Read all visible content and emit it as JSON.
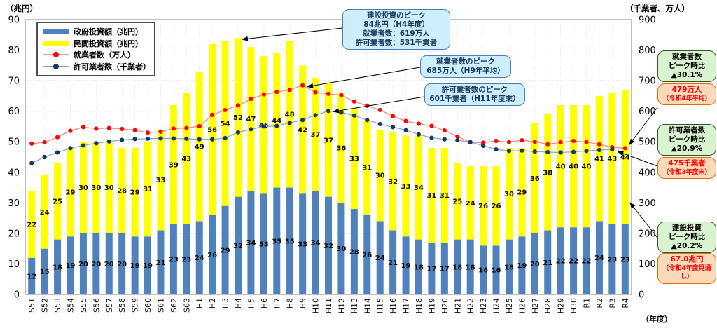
{
  "axes": {
    "left_unit": "（兆円）",
    "right_unit": "（千業者、万人）",
    "x_unit": "（年度）",
    "left_ticks": [
      0,
      10,
      20,
      30,
      40,
      50,
      60,
      70,
      80,
      90
    ],
    "right_ticks": [
      0,
      100,
      200,
      300,
      400,
      500,
      600,
      700,
      800,
      900
    ]
  },
  "legend": {
    "items": [
      {
        "label": "政府投資額（兆円）",
        "type": "bar",
        "color": "#4f81bd"
      },
      {
        "label": "民間投資額（兆円）",
        "type": "bar",
        "color": "#ffff00"
      },
      {
        "label": "就業者数（万人）",
        "type": "line",
        "color": "#ff0000"
      },
      {
        "label": "許可業者数（千業者）",
        "type": "line",
        "color": "#17375e"
      }
    ]
  },
  "chart_data": {
    "type": "bar",
    "subtype": "stacked-bars-with-lines",
    "categories": [
      "S51",
      "S52",
      "S53",
      "S54",
      "S55",
      "S56",
      "S57",
      "S58",
      "S59",
      "S60",
      "S61",
      "S62",
      "S63",
      "H1",
      "H2",
      "H3",
      "H4",
      "H5",
      "H6",
      "H7",
      "H8",
      "H9",
      "H10",
      "H11",
      "H12",
      "H13",
      "H14",
      "H15",
      "H16",
      "H17",
      "H18",
      "H19",
      "H20",
      "H21",
      "H22",
      "H23",
      "H24",
      "H25",
      "H26",
      "H27",
      "H28",
      "H29",
      "H30",
      "R1",
      "R2",
      "R3",
      "R4"
    ],
    "series": [
      {
        "name": "政府投資額（兆円）",
        "type": "bar",
        "axis": "left",
        "color": "#4f81bd",
        "values": [
          12,
          15,
          18,
          19,
          20,
          20,
          20,
          20,
          19,
          19,
          21,
          23,
          23,
          24,
          26,
          29,
          32,
          34,
          33,
          35,
          35,
          33,
          34,
          32,
          30,
          28,
          26,
          24,
          21,
          19,
          18,
          17,
          17,
          18,
          18,
          16,
          16,
          18,
          19,
          20,
          21,
          22,
          22,
          22,
          24,
          23,
          23
        ]
      },
      {
        "name": "民間投資額（兆円）",
        "type": "bar",
        "axis": "left",
        "color": "#ffff00",
        "values": [
          22,
          24,
          25,
          29,
          30,
          30,
          30,
          28,
          29,
          31,
          33,
          39,
          43,
          49,
          56,
          54,
          52,
          47,
          45,
          44,
          48,
          42,
          37,
          37,
          36,
          33,
          31,
          30,
          32,
          33,
          34,
          31,
          31,
          25,
          24,
          26,
          26,
          30,
          29,
          36,
          38,
          40,
          40,
          40,
          41,
          43,
          44
        ]
      },
      {
        "name": "就業者数（万人）",
        "type": "line",
        "axis": "right",
        "color": "#ff0000",
        "values": [
          494,
          498,
          515,
          536,
          548,
          543,
          545,
          542,
          538,
          530,
          533,
          543,
          545,
          551,
          588,
          604,
          619,
          640,
          655,
          663,
          670,
          685,
          662,
          657,
          653,
          632,
          618,
          604,
          584,
          568,
          559,
          552,
          537,
          517,
          498,
          497,
          503,
          499,
          505,
          500,
          492,
          498,
          503,
          499,
          492,
          482,
          479
        ]
      },
      {
        "name": "許可業者数（千業者）",
        "type": "line",
        "axis": "right",
        "color": "#17375e",
        "values": [
          430,
          450,
          465,
          479,
          488,
          495,
          501,
          506,
          509,
          510,
          511,
          511,
          510,
          508,
          508,
          512,
          531,
          541,
          550,
          552,
          562,
          571,
          587,
          601,
          596,
          586,
          571,
          558,
          548,
          538,
          524,
          513,
          508,
          505,
          499,
          487,
          475,
          470,
          471,
          468,
          466,
          465,
          467,
          470,
          473,
          475,
          null
        ]
      }
    ],
    "ylim_left": [
      0,
      90
    ],
    "ylim_right": [
      0,
      900
    ],
    "xlabel": "（年度）",
    "ylabel_left": "（兆円）",
    "ylabel_right": "（千業者、万人）",
    "grid": true,
    "legend_position": "top-left-inside"
  },
  "callouts": [
    {
      "lines": [
        "建設投資のピーク",
        "84兆円（H4年度）",
        "就業者数：619万人",
        "許可業者数：531千業者"
      ]
    },
    {
      "lines": [
        "就業者数のピーク",
        "685万人（H9年平均）"
      ]
    },
    {
      "lines": [
        "許可業者数のピーク",
        "601千業者（H11年度末）"
      ]
    }
  ],
  "side_boxes": [
    {
      "style": "green",
      "lines": [
        "就業者数",
        "ピーク時比",
        "▲30.1%"
      ]
    },
    {
      "style": "orange",
      "lines": [
        "479万人",
        "（令和4年平均）"
      ]
    },
    {
      "style": "green",
      "lines": [
        "許可業者数",
        "ピーク時比",
        "▲20.9%"
      ]
    },
    {
      "style": "orange",
      "lines": [
        "475千業者",
        "（令和3年度末）"
      ]
    },
    {
      "style": "green",
      "lines": [
        "建設投資",
        "ピーク時比",
        "▲20.2%"
      ]
    },
    {
      "style": "orange",
      "lines": [
        "67.0兆円",
        "（令和4年度見通し）"
      ]
    }
  ]
}
